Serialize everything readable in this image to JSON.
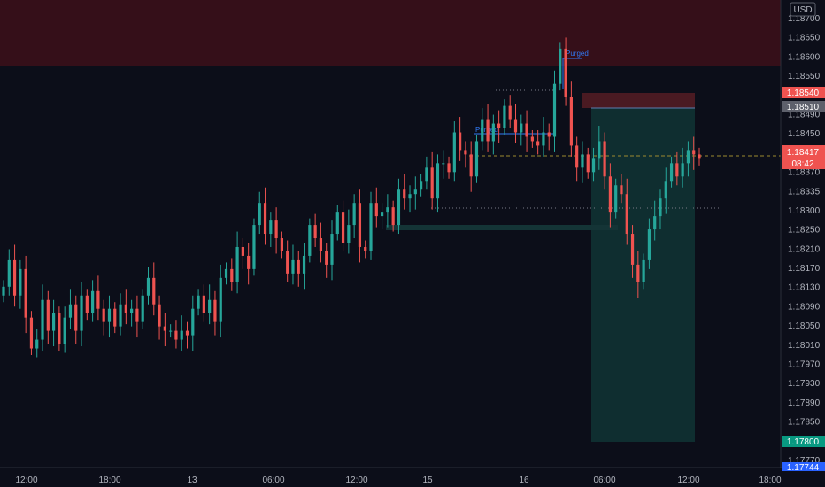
{
  "currency": "USD",
  "colors": {
    "background": "#0c0e19",
    "up": "#26a69a",
    "down": "#ef5350",
    "supply_zone": "#3a0f19",
    "target_zone": "#0d2a2c",
    "accent_blue": "#2962ff",
    "label_gray": "#5d606b",
    "label_red": "#ef5350",
    "label_green": "#089981",
    "grid_guide": "#787b86",
    "dashed_price": "#9c8a2f"
  },
  "annotations": {
    "purged_1": "Purged",
    "purged_2": "Purged"
  },
  "price_labels": {
    "high_marker": "1.18540",
    "entry_marker": "1.18510",
    "current_price": "1.18417",
    "countdown": "08:42",
    "target_marker": "1.17800",
    "bottom_marker": "1.17744"
  },
  "chart_data": {
    "type": "candlestick",
    "ylim": [
      1.1772,
      1.1874
    ],
    "y_ticks": [
      "1.18700",
      "1.18650",
      "1.18600",
      "1.18550",
      "1.18510",
      "1.18490",
      "1.18450",
      "1.18410",
      "1.18370",
      "1.18335",
      "1.18300",
      "1.18250",
      "1.18210",
      "1.18170",
      "1.18130",
      "1.18090",
      "1.18050",
      "1.18010",
      "1.17970",
      "1.17930",
      "1.17890",
      "1.17850",
      "1.17800",
      "1.17770"
    ],
    "x_ticks": [
      "12:00",
      "18:00",
      "13",
      "06:00",
      "12:00",
      "15",
      "16",
      "06:00",
      "12:00",
      "18:00"
    ],
    "closes": [
      1.1813,
      1.1819,
      1.1811,
      1.1817,
      1.1806,
      1.1799,
      1.1801,
      1.181,
      1.1803,
      1.1807,
      1.18,
      1.1806,
      1.1809,
      1.1803,
      1.1811,
      1.1807,
      1.1812,
      1.1808,
      1.1805,
      1.1808,
      1.1804,
      1.1809,
      1.1807,
      1.1808,
      1.1805,
      1.1811,
      1.1815,
      1.1809,
      1.1804,
      1.1803,
      1.1803,
      1.1801,
      1.1803,
      1.1802,
      1.1808,
      1.1811,
      1.1807,
      1.181,
      1.1805,
      1.1815,
      1.1817,
      1.1814,
      1.1822,
      1.182,
      1.1817,
      1.1827,
      1.1832,
      1.1825,
      1.1828,
      1.1824,
      1.1821,
      1.1816,
      1.1819,
      1.1816,
      1.182,
      1.1827,
      1.1824,
      1.1821,
      1.1818,
      1.1825,
      1.183,
      1.1823,
      1.1827,
      1.1832,
      1.1822,
      1.1821,
      1.1832,
      1.1829,
      1.183,
      1.1831,
      1.1827,
      1.1835,
      1.1833,
      1.1834,
      1.1835,
      1.1837,
      1.184,
      1.1833,
      1.1841,
      1.1841,
      1.1839,
      1.1848,
      1.1844,
      1.1843,
      1.1838,
      1.1846,
      1.1851,
      1.1846,
      1.185,
      1.1849,
      1.1854,
      1.1851,
      1.1848,
      1.185,
      1.1847,
      1.1846,
      1.1845,
      1.1848,
      1.1847,
      1.1859,
      1.1867,
      1.1856,
      1.1845,
      1.184,
      1.1843,
      1.1839,
      1.1842,
      1.1846,
      1.1838,
      1.183,
      1.1836,
      1.1834,
      1.1825,
      1.1818,
      1.1814,
      1.1819,
      1.1826,
      1.1829,
      1.1833,
      1.1837,
      1.1841,
      1.1838,
      1.1841,
      1.1844,
      1.1843,
      1.1842
    ]
  }
}
